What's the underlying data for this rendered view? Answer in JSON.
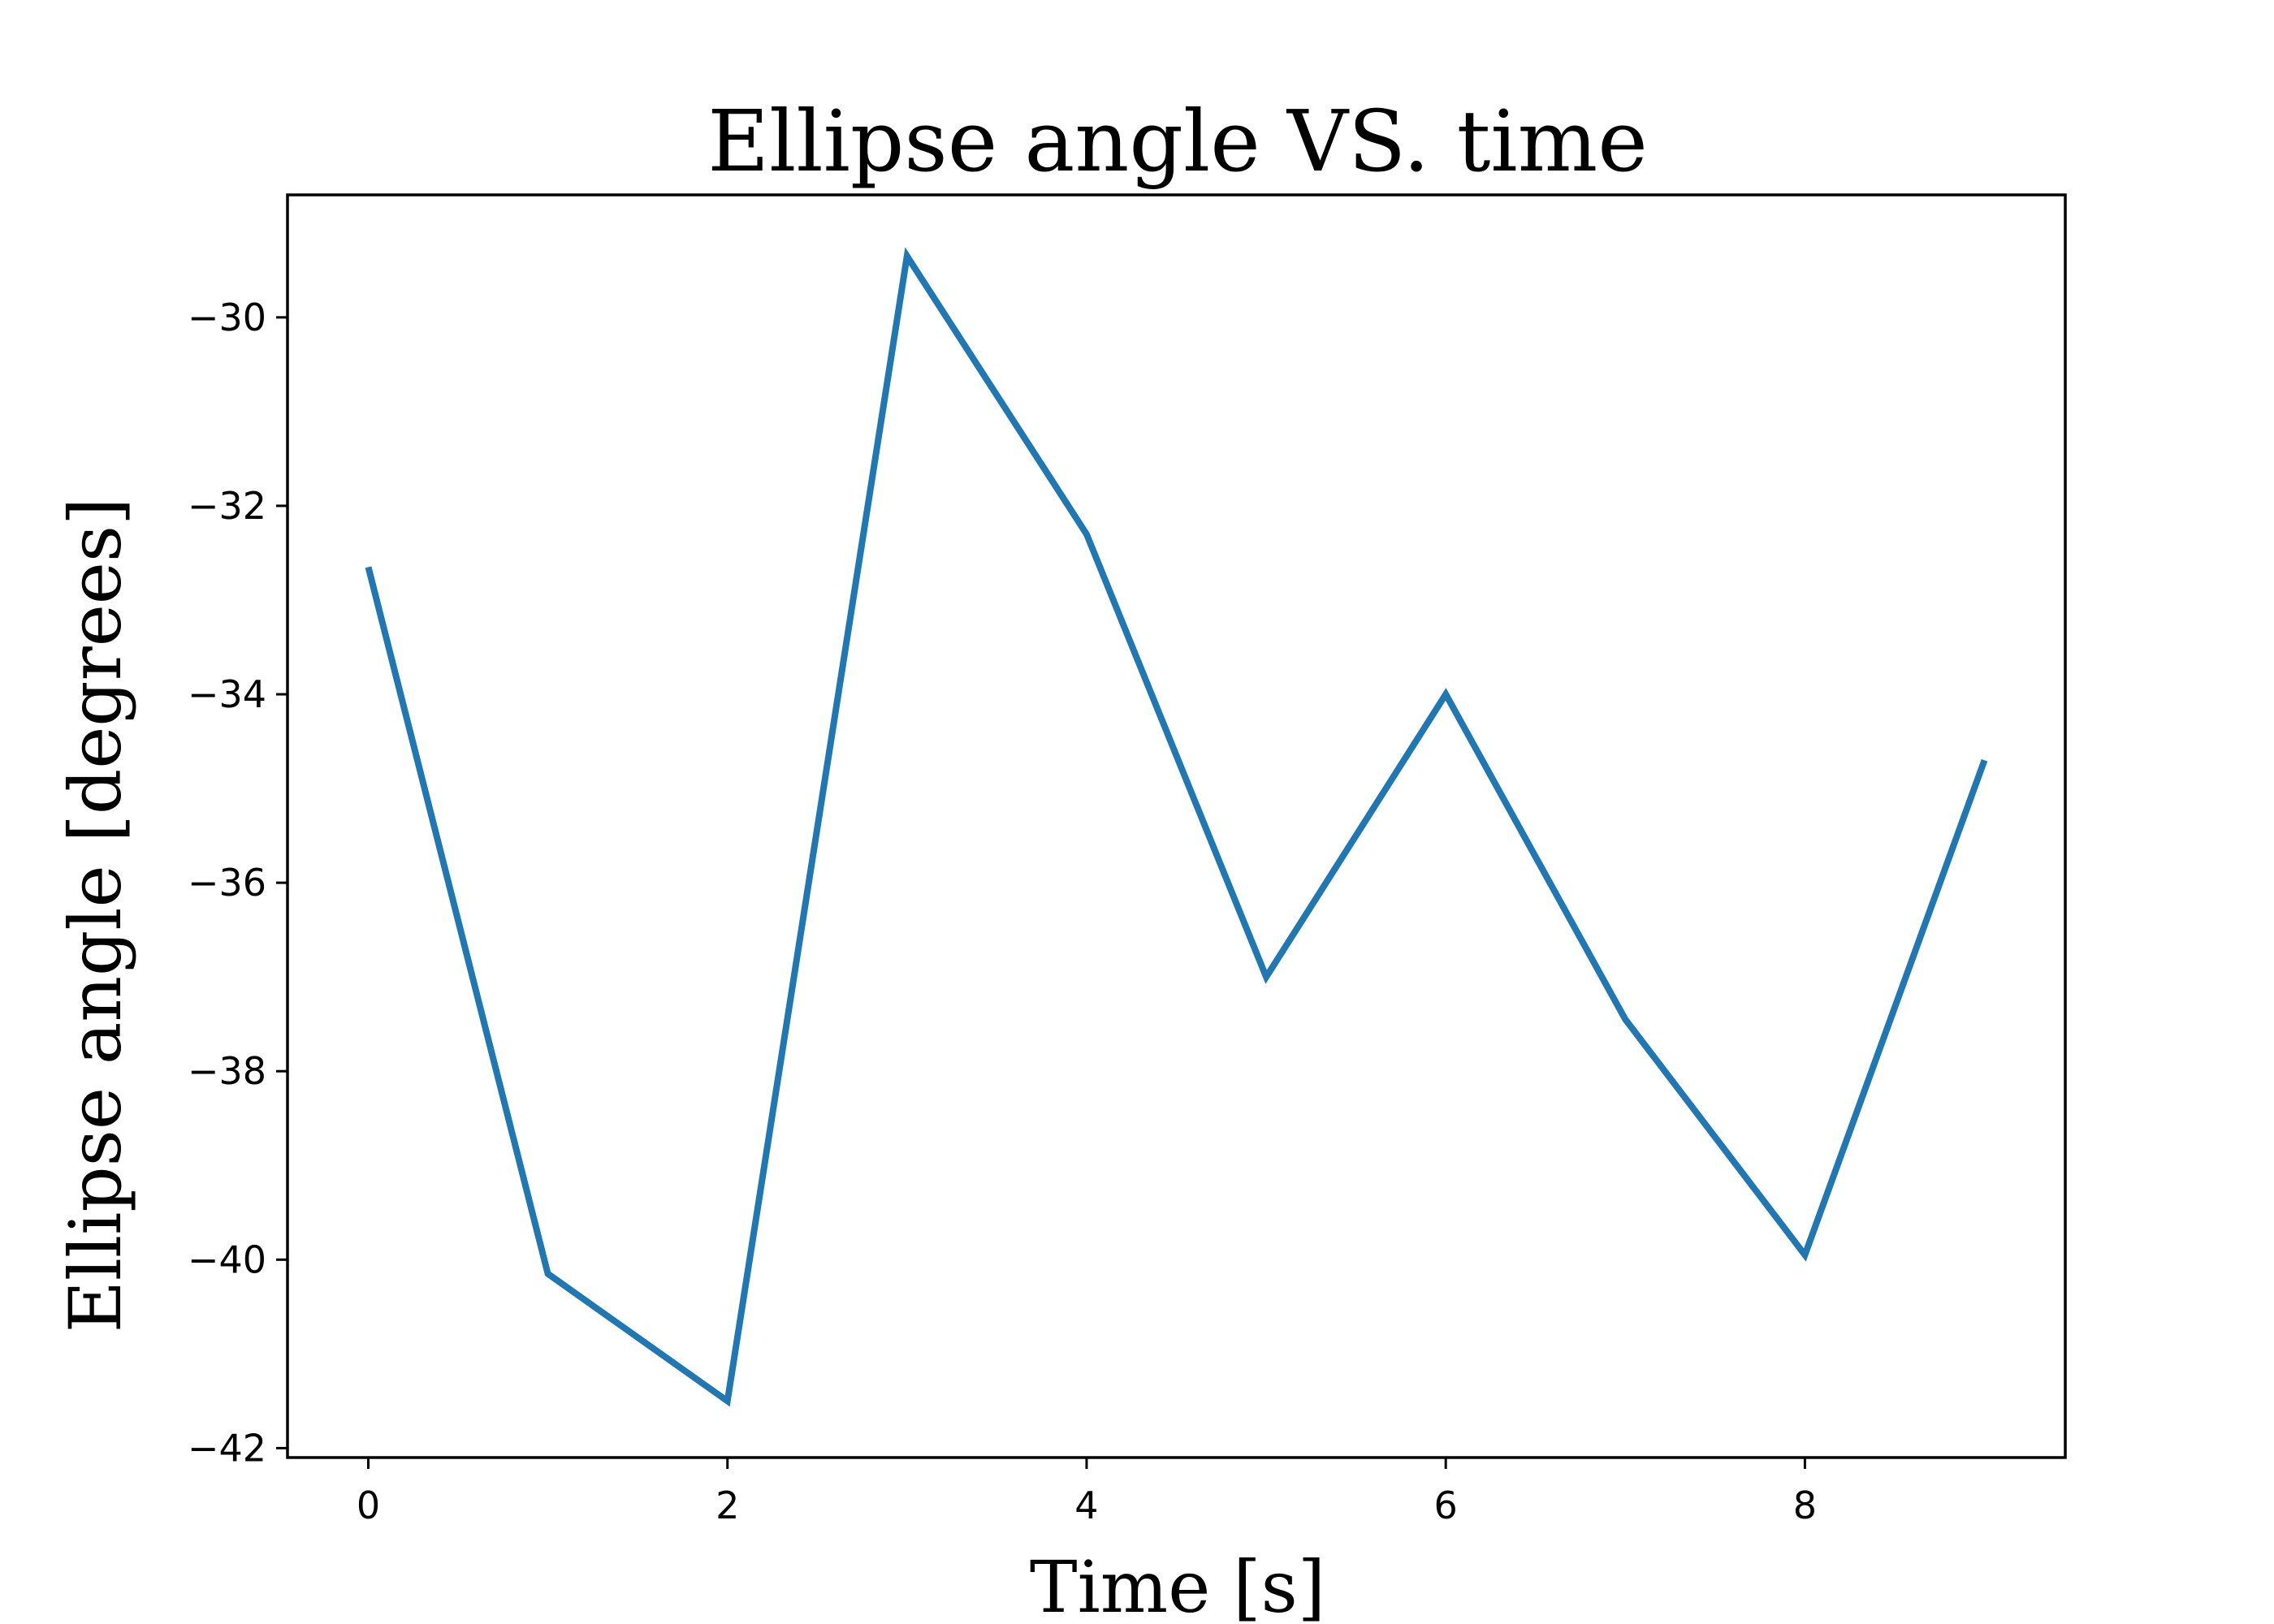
{
  "chart_data": {
    "type": "line",
    "title": "Ellipse angle VS. time",
    "xlabel": "Time [s]",
    "ylabel": "Ellipse angle [degrees]",
    "xlim": [
      -0.45,
      9.45
    ],
    "ylim": [
      -42.1,
      -28.7
    ],
    "xticks": [
      0,
      2,
      4,
      6,
      8
    ],
    "xtick_labels": [
      "0",
      "2",
      "4",
      "6",
      "8"
    ],
    "yticks": [
      -42,
      -40,
      -38,
      -36,
      -34,
      -32,
      -30
    ],
    "ytick_labels": [
      "−42",
      "−40",
      "−38",
      "−36",
      "−34",
      "−32",
      "−30"
    ],
    "grid": false,
    "series": [
      {
        "color": "#1f77b4",
        "x": [
          0,
          1,
          2,
          3,
          4,
          5,
          6,
          7,
          8,
          9
        ],
        "y": [
          -32.65,
          -40.15,
          -41.5,
          -29.35,
          -32.3,
          -37.0,
          -34.0,
          -37.45,
          -39.95,
          -34.7
        ]
      }
    ]
  }
}
